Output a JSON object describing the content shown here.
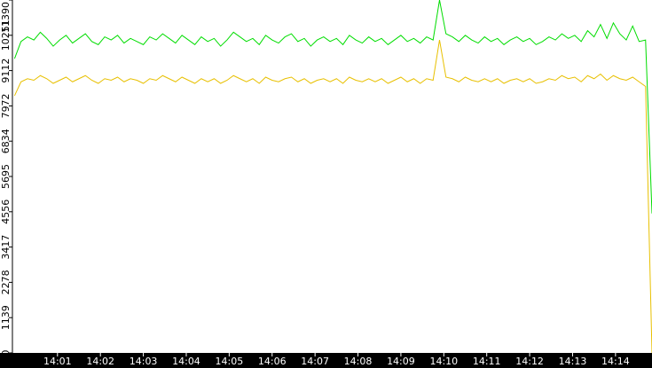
{
  "chart_data": {
    "type": "line",
    "x": [
      840.0,
      840.15,
      840.3,
      840.45,
      840.6,
      840.75,
      840.9,
      841.05,
      841.2,
      841.35,
      841.5,
      841.65,
      841.8,
      841.95,
      842.1,
      842.25,
      842.4,
      842.55,
      842.7,
      842.85,
      843.0,
      843.15,
      843.3,
      843.45,
      843.6,
      843.75,
      843.9,
      844.05,
      844.2,
      844.35,
      844.5,
      844.65,
      844.8,
      844.95,
      845.1,
      845.25,
      845.4,
      845.55,
      845.7,
      845.85,
      846.0,
      846.15,
      846.3,
      846.45,
      846.6,
      846.75,
      846.9,
      847.05,
      847.2,
      847.35,
      847.5,
      847.65,
      847.8,
      847.95,
      848.1,
      848.25,
      848.4,
      848.55,
      848.7,
      848.85,
      849.0,
      849.15,
      849.3,
      849.45,
      849.6,
      849.75,
      849.9,
      850.05,
      850.2,
      850.35,
      850.5,
      850.65,
      850.8,
      850.95,
      851.1,
      851.25,
      851.4,
      851.55,
      851.7,
      851.85,
      852.0,
      852.15,
      852.3,
      852.45,
      852.6,
      852.75,
      852.9,
      853.05,
      853.2,
      853.35,
      853.5,
      853.65,
      853.8,
      853.95,
      854.1,
      854.25,
      854.4,
      854.55,
      854.7,
      854.85
    ],
    "series": [
      {
        "color": "#00dd00",
        "values": [
          9500,
          10050,
          10200,
          10100,
          10350,
          10150,
          9900,
          10100,
          10250,
          10000,
          10150,
          10300,
          10050,
          9950,
          10200,
          10100,
          10250,
          10000,
          10150,
          10050,
          9950,
          10200,
          10100,
          10300,
          10150,
          10000,
          10250,
          10100,
          9950,
          10200,
          10050,
          10150,
          9900,
          10100,
          10350,
          10200,
          10050,
          10150,
          9950,
          10250,
          10100,
          10000,
          10200,
          10300,
          10050,
          10150,
          9900,
          10100,
          10200,
          10050,
          10150,
          9950,
          10250,
          10100,
          10000,
          10200,
          10050,
          10150,
          9950,
          10100,
          10250,
          10050,
          10150,
          10000,
          10200,
          10100,
          11390,
          10300,
          10200,
          10050,
          10250,
          10100,
          10000,
          10200,
          10050,
          10150,
          9950,
          10100,
          10200,
          10050,
          10150,
          9950,
          10050,
          10200,
          10100,
          10300,
          10150,
          10250,
          10050,
          10400,
          10200,
          10600,
          10150,
          10650,
          10300,
          10100,
          10550,
          10050,
          10100,
          4500
        ]
      },
      {
        "color": "#e8c000",
        "values": [
          8300,
          8750,
          8850,
          8800,
          8950,
          8850,
          8700,
          8800,
          8900,
          8750,
          8850,
          8950,
          8800,
          8700,
          8850,
          8800,
          8900,
          8750,
          8850,
          8800,
          8700,
          8850,
          8800,
          8950,
          8850,
          8750,
          8900,
          8800,
          8700,
          8850,
          8750,
          8850,
          8700,
          8800,
          8950,
          8850,
          8750,
          8850,
          8700,
          8900,
          8800,
          8750,
          8850,
          8900,
          8750,
          8850,
          8700,
          8800,
          8850,
          8750,
          8850,
          8700,
          8900,
          8800,
          8750,
          8850,
          8750,
          8850,
          8700,
          8800,
          8900,
          8750,
          8850,
          8700,
          8850,
          8800,
          10100,
          8900,
          8850,
          8750,
          8900,
          8800,
          8750,
          8850,
          8750,
          8850,
          8700,
          8800,
          8850,
          8750,
          8850,
          8700,
          8750,
          8850,
          8800,
          8950,
          8850,
          8900,
          8750,
          8950,
          8850,
          9000,
          8800,
          8950,
          8850,
          8800,
          8900,
          8750,
          8600,
          0
        ]
      }
    ],
    "xlim": [
      839.95,
      854.85
    ],
    "xticks": [
      {
        "value": 841,
        "label": "14:01"
      },
      {
        "value": 842,
        "label": "14:02"
      },
      {
        "value": 843,
        "label": "14:03"
      },
      {
        "value": 844,
        "label": "14:04"
      },
      {
        "value": 845,
        "label": "14:05"
      },
      {
        "value": 846,
        "label": "14:06"
      },
      {
        "value": 847,
        "label": "14:07"
      },
      {
        "value": 848,
        "label": "14:08"
      },
      {
        "value": 849,
        "label": "14:09"
      },
      {
        "value": 850,
        "label": "14:10"
      },
      {
        "value": 851,
        "label": "14:11"
      },
      {
        "value": 852,
        "label": "14:12"
      },
      {
        "value": 853,
        "label": "14:13"
      },
      {
        "value": 854,
        "label": "14:14"
      }
    ],
    "ylim": [
      0,
      11390
    ],
    "yticks": [
      0,
      1139,
      2278,
      3417,
      4556,
      5695,
      6834,
      7972,
      9112,
      10251,
      11390
    ]
  }
}
